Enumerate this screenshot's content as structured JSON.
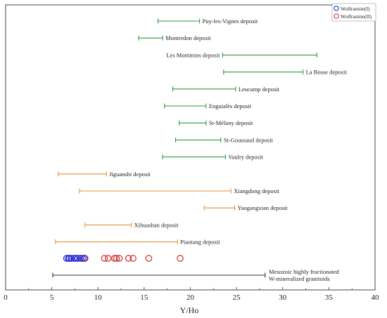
{
  "chart_data": {
    "type": "range",
    "xlabel": "Y/Ho",
    "xlim": [
      0,
      40
    ],
    "xticks": [
      "0",
      "5",
      "10",
      "15",
      "20",
      "25",
      "30",
      "35",
      "40"
    ],
    "grid": false,
    "legend": {
      "placement": "top-right",
      "entries": [
        {
          "name": "Wolframite(I)",
          "color": "#2b2bd6"
        },
        {
          "name": "Wolframite(II)",
          "color": "#d43a3a"
        }
      ]
    },
    "ranges": [
      {
        "label": "Puy-les-Vignes deposit",
        "min": 16.5,
        "max": 21.0,
        "color": "#2e9a3e",
        "label_side": "right"
      },
      {
        "label": "Montredon deposit",
        "min": 14.4,
        "max": 17.0,
        "color": "#2e9a3e",
        "label_side": "right"
      },
      {
        "label": "Les Montmins deposit",
        "min": 23.5,
        "max": 33.7,
        "color": "#2e9a3e",
        "label_side": "left"
      },
      {
        "label": "La Bosse deposit",
        "min": 23.6,
        "max": 32.2,
        "color": "#2e9a3e",
        "label_side": "right"
      },
      {
        "label": "Leucamp deposit",
        "min": 18.1,
        "max": 24.9,
        "color": "#2e9a3e",
        "label_side": "right"
      },
      {
        "label": "Enguialès deposit",
        "min": 17.2,
        "max": 21.7,
        "color": "#2e9a3e",
        "label_side": "right"
      },
      {
        "label": "St-Mélany deposit",
        "min": 18.8,
        "max": 21.7,
        "color": "#2e9a3e",
        "label_side": "right"
      },
      {
        "label": "St-Goussaud deposit",
        "min": 18.4,
        "max": 23.3,
        "color": "#2e9a3e",
        "label_side": "right"
      },
      {
        "label": "Vaulry deposit",
        "min": 17.0,
        "max": 23.8,
        "color": "#2e9a3e",
        "label_side": "right"
      },
      {
        "label": "Jiguanshi deposit",
        "min": 5.7,
        "max": 10.9,
        "color": "#e8913a",
        "label_side": "right"
      },
      {
        "label": "Xiangdong deposit",
        "min": 8.0,
        "max": 24.4,
        "color": "#e8913a",
        "label_side": "right"
      },
      {
        "label": "Yaogangxian deposit",
        "min": 21.5,
        "max": 24.8,
        "color": "#e8913a",
        "label_side": "right"
      },
      {
        "label": "Xihuashan deposit",
        "min": 8.6,
        "max": 13.6,
        "color": "#e8913a",
        "label_side": "right"
      },
      {
        "label": "Piaotang deposit",
        "min": 5.4,
        "max": 18.6,
        "color": "#e8913a",
        "label_side": "right"
      }
    ],
    "wolframite_I": [
      6.6,
      6.8,
      6.9,
      7.1,
      7.4,
      7.6,
      7.8,
      8.1,
      8.3,
      8.5
    ],
    "wolframite_II": [
      8.6,
      10.7,
      11.1,
      11.8,
      12.0,
      12.3,
      13.3,
      13.8,
      15.5,
      18.9
    ],
    "granitoid_range": {
      "min": 5.1,
      "max": 28.1,
      "color": "#333333"
    },
    "granitoid_label": [
      "Mesozoic highly fractionated",
      "W-mineralized granitoids"
    ]
  }
}
